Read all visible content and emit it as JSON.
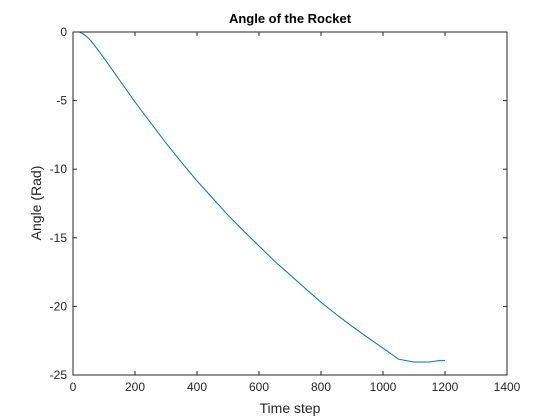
{
  "chart_data": {
    "type": "line",
    "title": "Angle of the Rocket",
    "xlabel": "Time step",
    "ylabel": "Angle (Rad)",
    "xlim": [
      0,
      1400
    ],
    "ylim": [
      -25,
      0
    ],
    "xticks": [
      0,
      200,
      400,
      600,
      800,
      1000,
      1200,
      1400
    ],
    "yticks": [
      0,
      -5,
      -10,
      -15,
      -20,
      -25
    ],
    "grid": false,
    "legend": "none",
    "series": [
      {
        "color": "#0072BD",
        "x": [
          0,
          10,
          20,
          30,
          40,
          50,
          60,
          80,
          100,
          150,
          200,
          250,
          300,
          350,
          400,
          450,
          500,
          550,
          600,
          650,
          700,
          750,
          800,
          850,
          900,
          950,
          1000,
          1050,
          1100,
          1150,
          1180,
          1190,
          1200
        ],
        "y": [
          0,
          0,
          0,
          -0.1,
          -0.25,
          -0.45,
          -0.7,
          -1.3,
          -1.9,
          -3.5,
          -5.1,
          -6.6,
          -8.1,
          -9.5,
          -10.85,
          -12.1,
          -13.35,
          -14.5,
          -15.6,
          -16.7,
          -17.7,
          -18.7,
          -19.7,
          -20.6,
          -21.45,
          -22.25,
          -23.05,
          -23.85,
          -24.05,
          -24.05,
          -23.95,
          -23.95,
          -23.95
        ]
      }
    ]
  }
}
